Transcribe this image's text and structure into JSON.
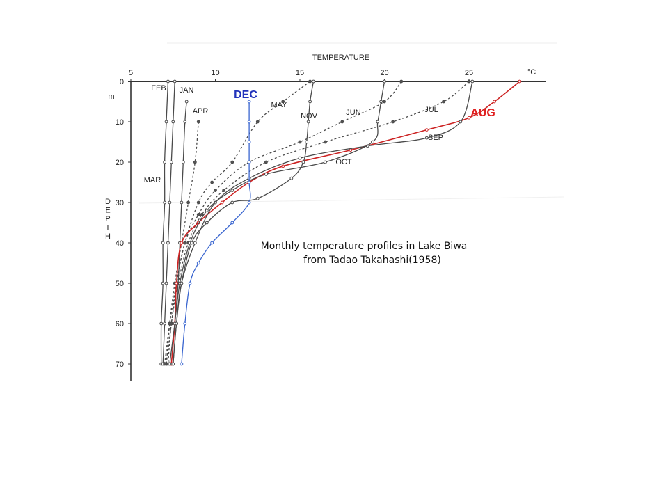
{
  "chart_data": {
    "type": "line",
    "xlabel": "TEMPERATURE",
    "x_unit": "°C",
    "ylabel": "DEPTH",
    "y_unit": "m",
    "x_ticks": [
      "5",
      "10",
      "15",
      "20",
      "25"
    ],
    "y_ticks": [
      "0",
      "10",
      "20",
      "30",
      "40",
      "50",
      "60",
      "70"
    ],
    "xlim": [
      5,
      28
    ],
    "ylim": [
      0,
      72
    ],
    "y_inverted": true,
    "caption": [
      "Monthly temperature profiles in Lake Biwa",
      "from Tadao Takahashi(1958)"
    ],
    "series": [
      {
        "name": "JAN",
        "color": "#4a4a4a",
        "dash": false,
        "label_color": "#222",
        "points": [
          [
            8.3,
            5
          ],
          [
            8.2,
            10
          ],
          [
            8.1,
            20
          ],
          [
            8.0,
            30
          ],
          [
            7.9,
            40
          ],
          [
            7.8,
            50
          ],
          [
            7.6,
            60
          ],
          [
            7.4,
            70
          ]
        ]
      },
      {
        "name": "FEB",
        "color": "#4a4a4a",
        "dash": false,
        "label_color": "#222",
        "points": [
          [
            7.2,
            0
          ],
          [
            7.1,
            10
          ],
          [
            7.0,
            20
          ],
          [
            7.0,
            30
          ],
          [
            6.9,
            40
          ],
          [
            6.9,
            50
          ],
          [
            6.8,
            60
          ],
          [
            6.8,
            70
          ]
        ]
      },
      {
        "name": "MAR",
        "color": "#4a4a4a",
        "dash": false,
        "label_color": "#222",
        "points": [
          [
            7.6,
            0
          ],
          [
            7.5,
            10
          ],
          [
            7.4,
            20
          ],
          [
            7.3,
            30
          ],
          [
            7.2,
            40
          ],
          [
            7.1,
            50
          ],
          [
            7.0,
            60
          ],
          [
            6.9,
            70
          ]
        ]
      },
      {
        "name": "APR",
        "color": "#4a4a4a",
        "dash": true,
        "label_color": "#222",
        "points": [
          [
            9.0,
            10
          ],
          [
            8.8,
            20
          ],
          [
            8.4,
            30
          ],
          [
            8.0,
            40
          ],
          [
            7.6,
            50
          ],
          [
            7.3,
            60
          ],
          [
            7.1,
            70
          ]
        ]
      },
      {
        "name": "MAY",
        "color": "#4a4a4a",
        "dash": true,
        "label_color": "#222",
        "points": [
          [
            15.6,
            0
          ],
          [
            14.0,
            5
          ],
          [
            12.5,
            10
          ],
          [
            11.0,
            20
          ],
          [
            9.8,
            25
          ],
          [
            9.0,
            30
          ],
          [
            8.2,
            40
          ],
          [
            7.7,
            50
          ],
          [
            7.4,
            60
          ],
          [
            7.1,
            70
          ]
        ]
      },
      {
        "name": "JUN",
        "color": "#4a4a4a",
        "dash": true,
        "label_color": "#222",
        "points": [
          [
            21.0,
            0
          ],
          [
            20.0,
            5
          ],
          [
            17.5,
            10
          ],
          [
            15.0,
            15
          ],
          [
            12.0,
            20
          ],
          [
            10.0,
            27
          ],
          [
            9.0,
            33
          ],
          [
            8.2,
            40
          ],
          [
            7.7,
            50
          ],
          [
            7.3,
            60
          ],
          [
            7.0,
            70
          ]
        ]
      },
      {
        "name": "JUL",
        "color": "#4a4a4a",
        "dash": true,
        "label_color": "#222",
        "points": [
          [
            25.0,
            0
          ],
          [
            23.5,
            5
          ],
          [
            20.5,
            10
          ],
          [
            16.5,
            15
          ],
          [
            13.0,
            20
          ],
          [
            10.5,
            27
          ],
          [
            9.2,
            33
          ],
          [
            8.4,
            40
          ],
          [
            7.8,
            50
          ],
          [
            7.4,
            60
          ],
          [
            7.2,
            70
          ]
        ]
      },
      {
        "name": "AUG",
        "color": "#cc2222",
        "dash": false,
        "label_color": "#e02020",
        "points": [
          [
            28.0,
            0
          ],
          [
            26.5,
            5
          ],
          [
            25.0,
            9
          ],
          [
            22.5,
            12
          ],
          [
            18.0,
            17
          ],
          [
            14.0,
            21
          ],
          [
            12.0,
            25
          ],
          [
            10.4,
            30
          ],
          [
            9.0,
            35
          ],
          [
            8.0,
            40
          ],
          [
            7.7,
            50
          ],
          [
            7.6,
            60
          ],
          [
            7.4,
            70
          ]
        ]
      },
      {
        "name": "SEP",
        "color": "#4a4a4a",
        "dash": false,
        "label_color": "#222",
        "points": [
          [
            25.2,
            0
          ],
          [
            24.5,
            10
          ],
          [
            22.5,
            14
          ],
          [
            19.0,
            16
          ],
          [
            15.0,
            19
          ],
          [
            12.0,
            24
          ],
          [
            10.0,
            30
          ],
          [
            8.8,
            40
          ],
          [
            8.0,
            50
          ],
          [
            7.7,
            60
          ],
          [
            7.5,
            70
          ]
        ]
      },
      {
        "name": "OCT",
        "color": "#4a4a4a",
        "dash": false,
        "label_color": "#222",
        "points": [
          [
            20.0,
            0
          ],
          [
            19.8,
            5
          ],
          [
            19.6,
            10
          ],
          [
            19.3,
            15
          ],
          [
            16.5,
            20
          ],
          [
            13.0,
            23
          ],
          [
            11.0,
            27
          ],
          [
            9.5,
            32
          ],
          [
            8.5,
            40
          ],
          [
            7.9,
            50
          ],
          [
            7.6,
            60
          ],
          [
            7.3,
            70
          ]
        ]
      },
      {
        "name": "NOV",
        "color": "#4a4a4a",
        "dash": false,
        "label_color": "#222",
        "points": [
          [
            15.8,
            0
          ],
          [
            15.6,
            5
          ],
          [
            15.5,
            10
          ],
          [
            15.4,
            15
          ],
          [
            15.2,
            20
          ],
          [
            14.5,
            24
          ],
          [
            12.5,
            29
          ],
          [
            11.0,
            30
          ],
          [
            9.5,
            35
          ],
          [
            8.6,
            40
          ],
          [
            8.0,
            50
          ],
          [
            7.7,
            60
          ],
          [
            7.5,
            70
          ]
        ]
      },
      {
        "name": "DEC",
        "color": "#3a66d0",
        "dash": false,
        "label_color": "#2233bb",
        "points": [
          [
            12.0,
            5
          ],
          [
            12.0,
            10
          ],
          [
            12.0,
            15
          ],
          [
            12.0,
            20
          ],
          [
            12.0,
            25
          ],
          [
            12.0,
            30
          ],
          [
            11.0,
            35
          ],
          [
            9.8,
            40
          ],
          [
            9.0,
            45
          ],
          [
            8.5,
            50
          ],
          [
            8.2,
            60
          ],
          [
            8.0,
            70
          ]
        ]
      }
    ]
  }
}
